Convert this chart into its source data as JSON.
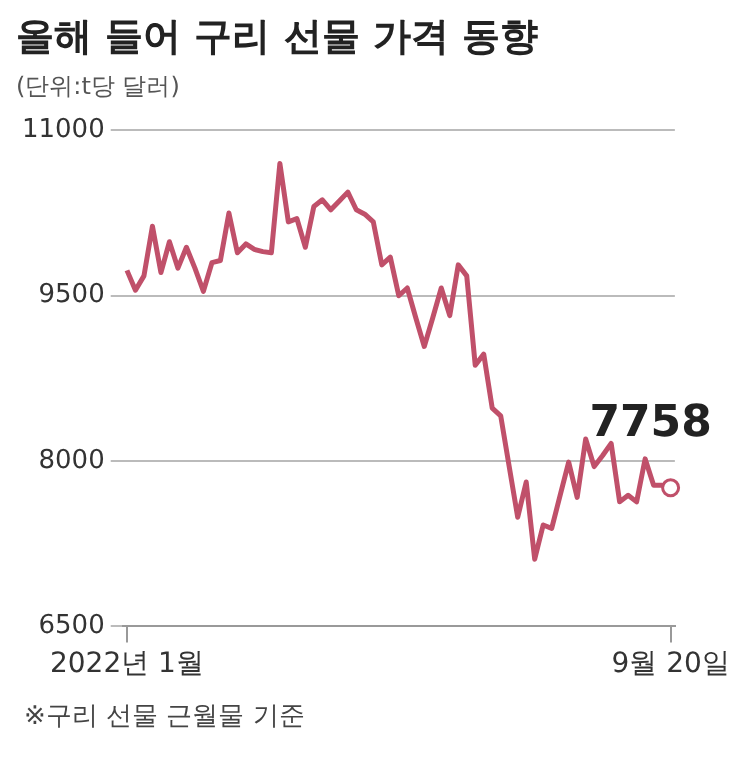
{
  "chart_data": {
    "type": "line",
    "title": "올해 들어 구리 선물 가격 동향",
    "subtitle": "(단위:t당 달러)",
    "categories": [
      "2022년 1월",
      null,
      null,
      null,
      null,
      null,
      null,
      null,
      null,
      null,
      null,
      null,
      null,
      null,
      null,
      null,
      null,
      null,
      null,
      null,
      null,
      null,
      null,
      null,
      null,
      null,
      null,
      null,
      null,
      null,
      null,
      null,
      null,
      null,
      null,
      null,
      null,
      null,
      null,
      null,
      null,
      null,
      null,
      null,
      null,
      null,
      null,
      null,
      null,
      null,
      null,
      null,
      null,
      null,
      null,
      null,
      null,
      null,
      null,
      null,
      null,
      null,
      null,
      null,
      "9월 20일"
    ],
    "series": [
      {
        "color": "#c0506a",
        "values": [
          9730,
          9550,
          9680,
          10130,
          9710,
          9990,
          9750,
          9940,
          9750,
          9540,
          9800,
          9820,
          10250,
          9890,
          9970,
          9920,
          9900,
          9890,
          10700,
          10170,
          10200,
          9940,
          10310,
          10370,
          10280,
          10360,
          10440,
          10280,
          10240,
          10170,
          9780,
          9850,
          9500,
          9570,
          9300,
          9040,
          9300,
          9570,
          9320,
          9780,
          9680,
          8870,
          8970,
          8480,
          8410,
          7950,
          7490,
          7810,
          7110,
          7420,
          7390,
          7690,
          7990,
          7670,
          8200,
          7950,
          8050,
          8160,
          7630,
          7690,
          7630,
          8020,
          7780,
          7780,
          7758
        ]
      }
    ],
    "ylim": [
      6500,
      11000
    ],
    "yticks": [
      6500,
      8000,
      9500,
      11000
    ],
    "grid": "y",
    "line_style": "solid",
    "annotations": [
      {
        "text": "7758",
        "x": "9월 20일",
        "y": 7758
      },
      "※구리 선물 근월물 기준"
    ]
  }
}
